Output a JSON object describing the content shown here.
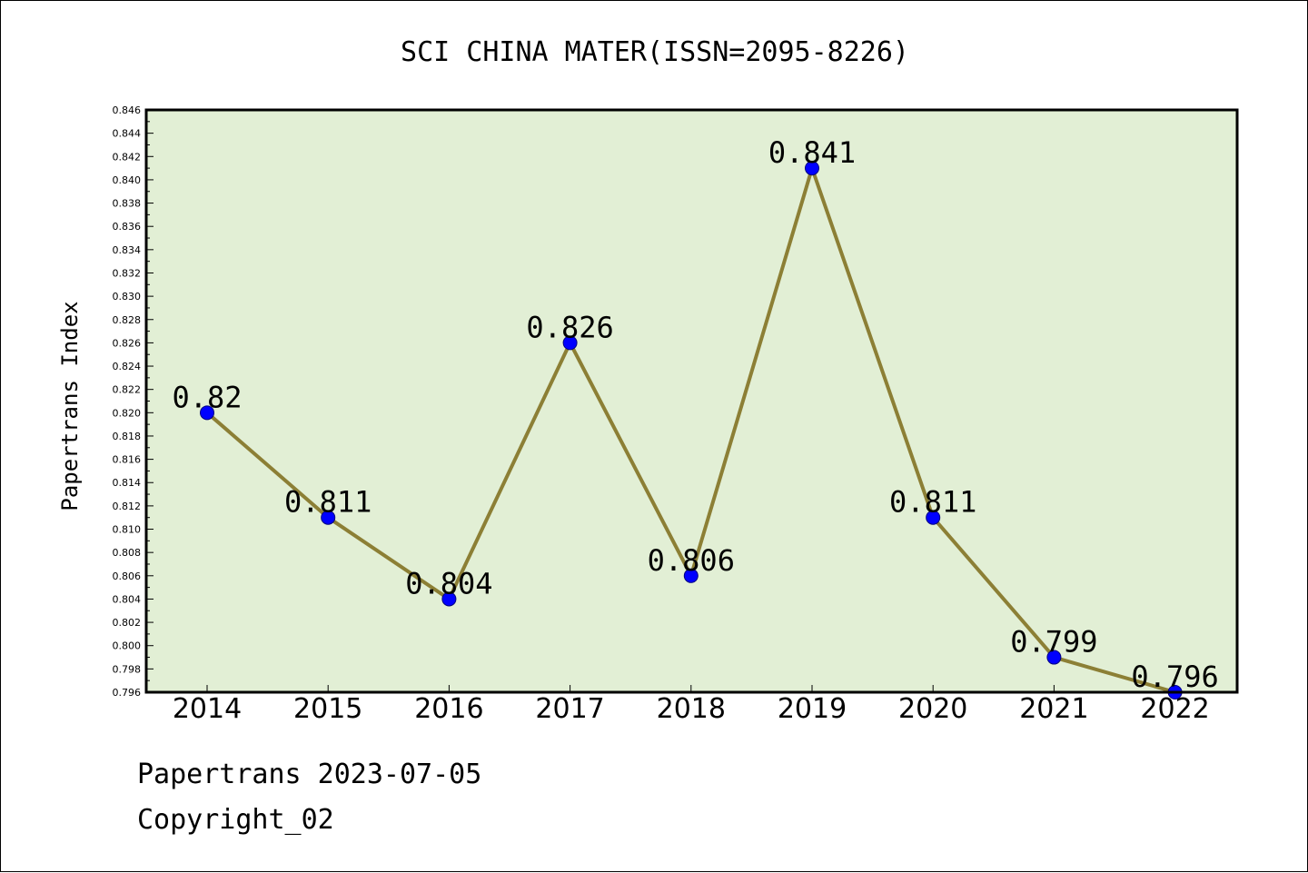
{
  "chart_data": {
    "type": "line",
    "title": "SCI CHINA MATER(ISSN=2095-8226)",
    "xlabel": "",
    "ylabel": "Papertrans Index",
    "categories": [
      "2014",
      "2015",
      "2016",
      "2017",
      "2018",
      "2019",
      "2020",
      "2021",
      "2022"
    ],
    "values": [
      0.82,
      0.811,
      0.804,
      0.826,
      0.806,
      0.841,
      0.811,
      0.799,
      0.796
    ],
    "data_labels": [
      "0.82",
      "0.811",
      "0.804",
      "0.826",
      "0.806",
      "0.841",
      "0.811",
      "0.799",
      "0.796"
    ],
    "ylim": [
      0.796,
      0.846
    ],
    "y_tick_step": 0.002,
    "y_tick_labels": [
      "0.796",
      "0.798",
      "0.800",
      "0.802",
      "0.804",
      "0.806",
      "0.808",
      "0.810",
      "0.812",
      "0.814",
      "0.816",
      "0.818",
      "0.820",
      "0.822",
      "0.824",
      "0.826",
      "0.828",
      "0.830",
      "0.832",
      "0.834",
      "0.836",
      "0.838",
      "0.840",
      "0.842",
      "0.844",
      "0.846"
    ],
    "grid": false,
    "legend": "none",
    "colors": {
      "plot_background": "#e2efd5",
      "line": "#8c7f35",
      "marker": "#0000ff",
      "marker_edge": "#000080"
    }
  },
  "footer": {
    "line1": "Papertrans 2023-07-05",
    "line2": "Copyright_02"
  }
}
